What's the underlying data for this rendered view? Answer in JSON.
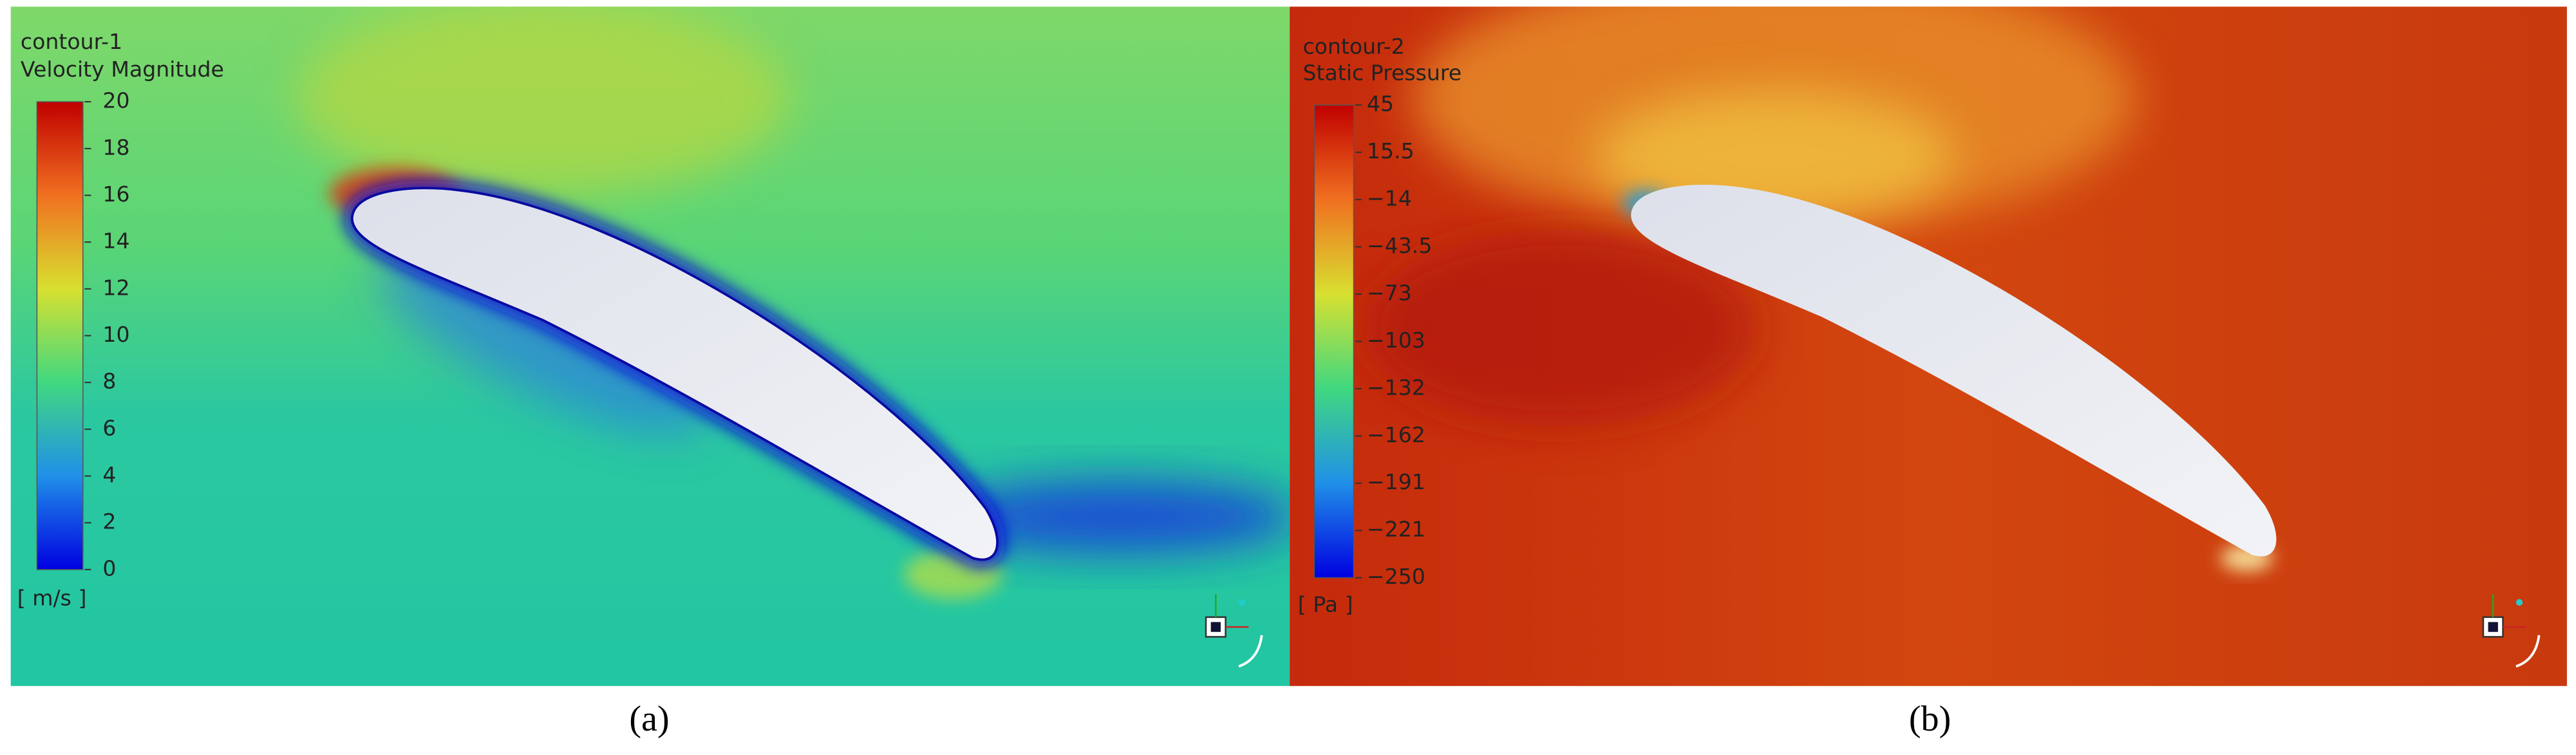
{
  "panels": [
    {
      "name": "contour-1",
      "quantity": "Velocity Magnitude",
      "unit": "[ m/s ]",
      "ticks": [
        "20",
        "18",
        "16",
        "14",
        "12",
        "10",
        "8",
        "6",
        "4",
        "2",
        "0"
      ],
      "caption": "(a)"
    },
    {
      "name": "contour-2",
      "quantity": "Static Pressure",
      "unit": "[ Pa ]",
      "ticks": [
        "45",
        "15.5",
        "−14",
        "−43.5",
        "−73",
        "−103",
        "−132",
        "−162",
        "−191",
        "−221",
        "−250"
      ],
      "caption": "(b)"
    }
  ]
}
